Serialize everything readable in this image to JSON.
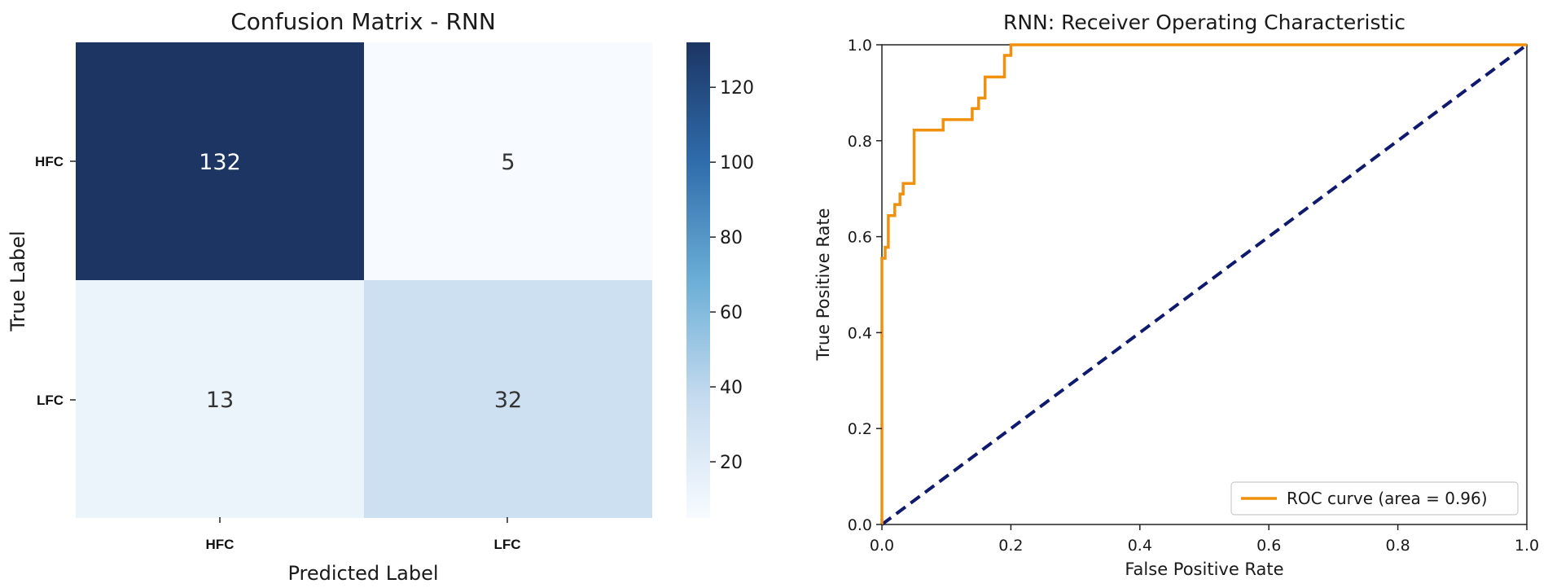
{
  "chart_data": [
    {
      "type": "heatmap",
      "title": "Confusion Matrix - RNN",
      "xlabel": "Predicted Label",
      "ylabel": "True Label",
      "x_categories": [
        "HFC",
        "LFC"
      ],
      "y_categories": [
        "HFC",
        "LFC"
      ],
      "values": [
        [
          132,
          5
        ],
        [
          13,
          32
        ]
      ],
      "colorbar": {
        "min": 5,
        "max": 132,
        "ticks": [
          20,
          40,
          60,
          80,
          100,
          120
        ]
      },
      "colors": {
        "low": "#f7fbff",
        "high": "#1c3563"
      },
      "grid": false
    },
    {
      "type": "line",
      "title": "RNN: Receiver Operating Characteristic",
      "xlabel": "False Positive Rate",
      "ylabel": "True Positive Rate",
      "xlim": [
        0,
        1
      ],
      "ylim": [
        0,
        1
      ],
      "xticks": [
        "0.0",
        "0.2",
        "0.4",
        "0.6",
        "0.8",
        "1.0"
      ],
      "yticks": [
        "0.0",
        "0.2",
        "0.4",
        "0.6",
        "0.8",
        "1.0"
      ],
      "grid": false,
      "legend_position": "bottom-right",
      "series": [
        {
          "name": "ROC curve (area = 0.96)",
          "color": "#f0900c",
          "style": "solid",
          "x": [
            0,
            0,
            0.005,
            0.005,
            0.01,
            0.01,
            0.02,
            0.02,
            0.028,
            0.028,
            0.033,
            0.033,
            0.05,
            0.05,
            0.095,
            0.095,
            0.14,
            0.14,
            0.15,
            0.15,
            0.16,
            0.16,
            0.17,
            0.17,
            0.18,
            0.19,
            0.19,
            0.2,
            0.2,
            0.21,
            1.0
          ],
          "y": [
            0,
            0.555,
            0.555,
            0.578,
            0.578,
            0.644,
            0.644,
            0.667,
            0.667,
            0.689,
            0.689,
            0.711,
            0.711,
            0.822,
            0.822,
            0.844,
            0.844,
            0.867,
            0.867,
            0.889,
            0.889,
            0.933,
            0.933,
            0.933,
            0.933,
            0.933,
            0.978,
            0.978,
            1.0,
            1.0,
            1.0
          ]
        },
        {
          "name": "",
          "color": "#0f1a6e",
          "style": "dashed",
          "x": [
            0,
            1
          ],
          "y": [
            0,
            1
          ]
        }
      ]
    }
  ]
}
